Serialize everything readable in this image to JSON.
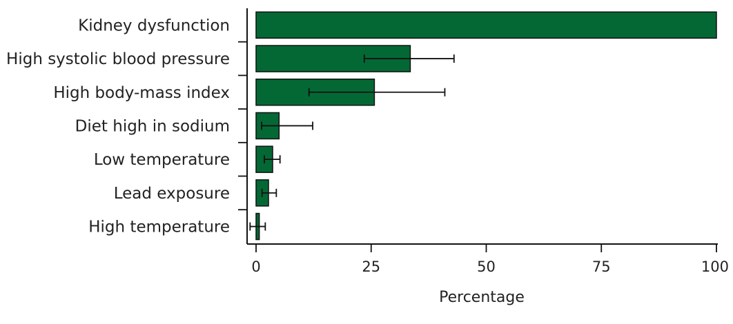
{
  "chart_data": {
    "type": "bar",
    "orientation": "horizontal",
    "categories": [
      "Kidney dysfunction",
      "High systolic blood pressure",
      "High body-mass index",
      "Diet high in sodium",
      "Low temperature",
      "Lead exposure",
      "High temperature"
    ],
    "values": [
      100,
      33.5,
      25.7,
      5.0,
      3.6,
      2.7,
      0.7
    ],
    "error_low": [
      100,
      23.5,
      11.5,
      1.2,
      1.8,
      1.3,
      -1.3
    ],
    "error_high": [
      100,
      43.0,
      41.0,
      12.3,
      5.2,
      4.4,
      2.0
    ],
    "xlabel": "Percentage",
    "xlim": [
      -2,
      100
    ],
    "xticks": [
      0,
      25,
      50,
      75,
      100
    ],
    "bar_color": "#046835",
    "grid": false
  }
}
